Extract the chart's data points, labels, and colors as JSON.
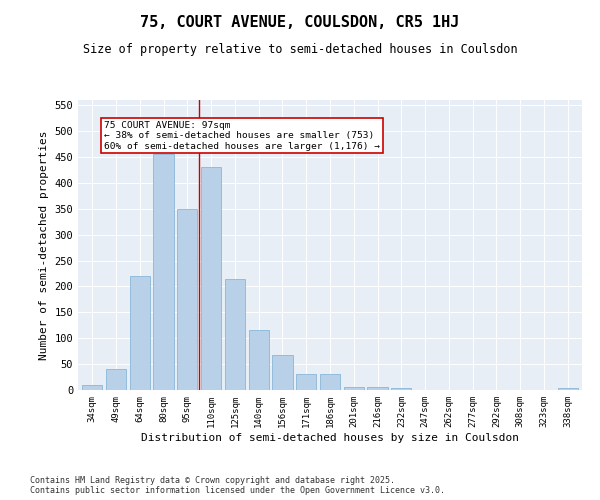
{
  "title": "75, COURT AVENUE, COULSDON, CR5 1HJ",
  "subtitle": "Size of property relative to semi-detached houses in Coulsdon",
  "xlabel": "Distribution of semi-detached houses by size in Coulsdon",
  "ylabel": "Number of semi-detached properties",
  "categories": [
    "34sqm",
    "49sqm",
    "64sqm",
    "80sqm",
    "95sqm",
    "110sqm",
    "125sqm",
    "140sqm",
    "156sqm",
    "171sqm",
    "186sqm",
    "201sqm",
    "216sqm",
    "232sqm",
    "247sqm",
    "262sqm",
    "277sqm",
    "292sqm",
    "308sqm",
    "323sqm",
    "338sqm"
  ],
  "values": [
    10,
    40,
    220,
    455,
    350,
    430,
    215,
    115,
    68,
    30,
    30,
    6,
    5,
    3,
    0,
    0,
    0,
    0,
    0,
    0,
    3
  ],
  "bar_color": "#b8d0e8",
  "bar_edge_color": "#7aafd4",
  "vline_x": 4.5,
  "vline_color": "#cc0000",
  "annotation_title": "75 COURT AVENUE: 97sqm",
  "annotation_line1": "← 38% of semi-detached houses are smaller (753)",
  "annotation_line2": "60% of semi-detached houses are larger (1,176) →",
  "annotation_box_color": "#cc0000",
  "ylim": [
    0,
    560
  ],
  "yticks": [
    0,
    50,
    100,
    150,
    200,
    250,
    300,
    350,
    400,
    450,
    500,
    550
  ],
  "background_color": "#e8eef5",
  "footer1": "Contains HM Land Registry data © Crown copyright and database right 2025.",
  "footer2": "Contains public sector information licensed under the Open Government Licence v3.0.",
  "title_fontsize": 11,
  "subtitle_fontsize": 8.5,
  "xlabel_fontsize": 8,
  "ylabel_fontsize": 8
}
